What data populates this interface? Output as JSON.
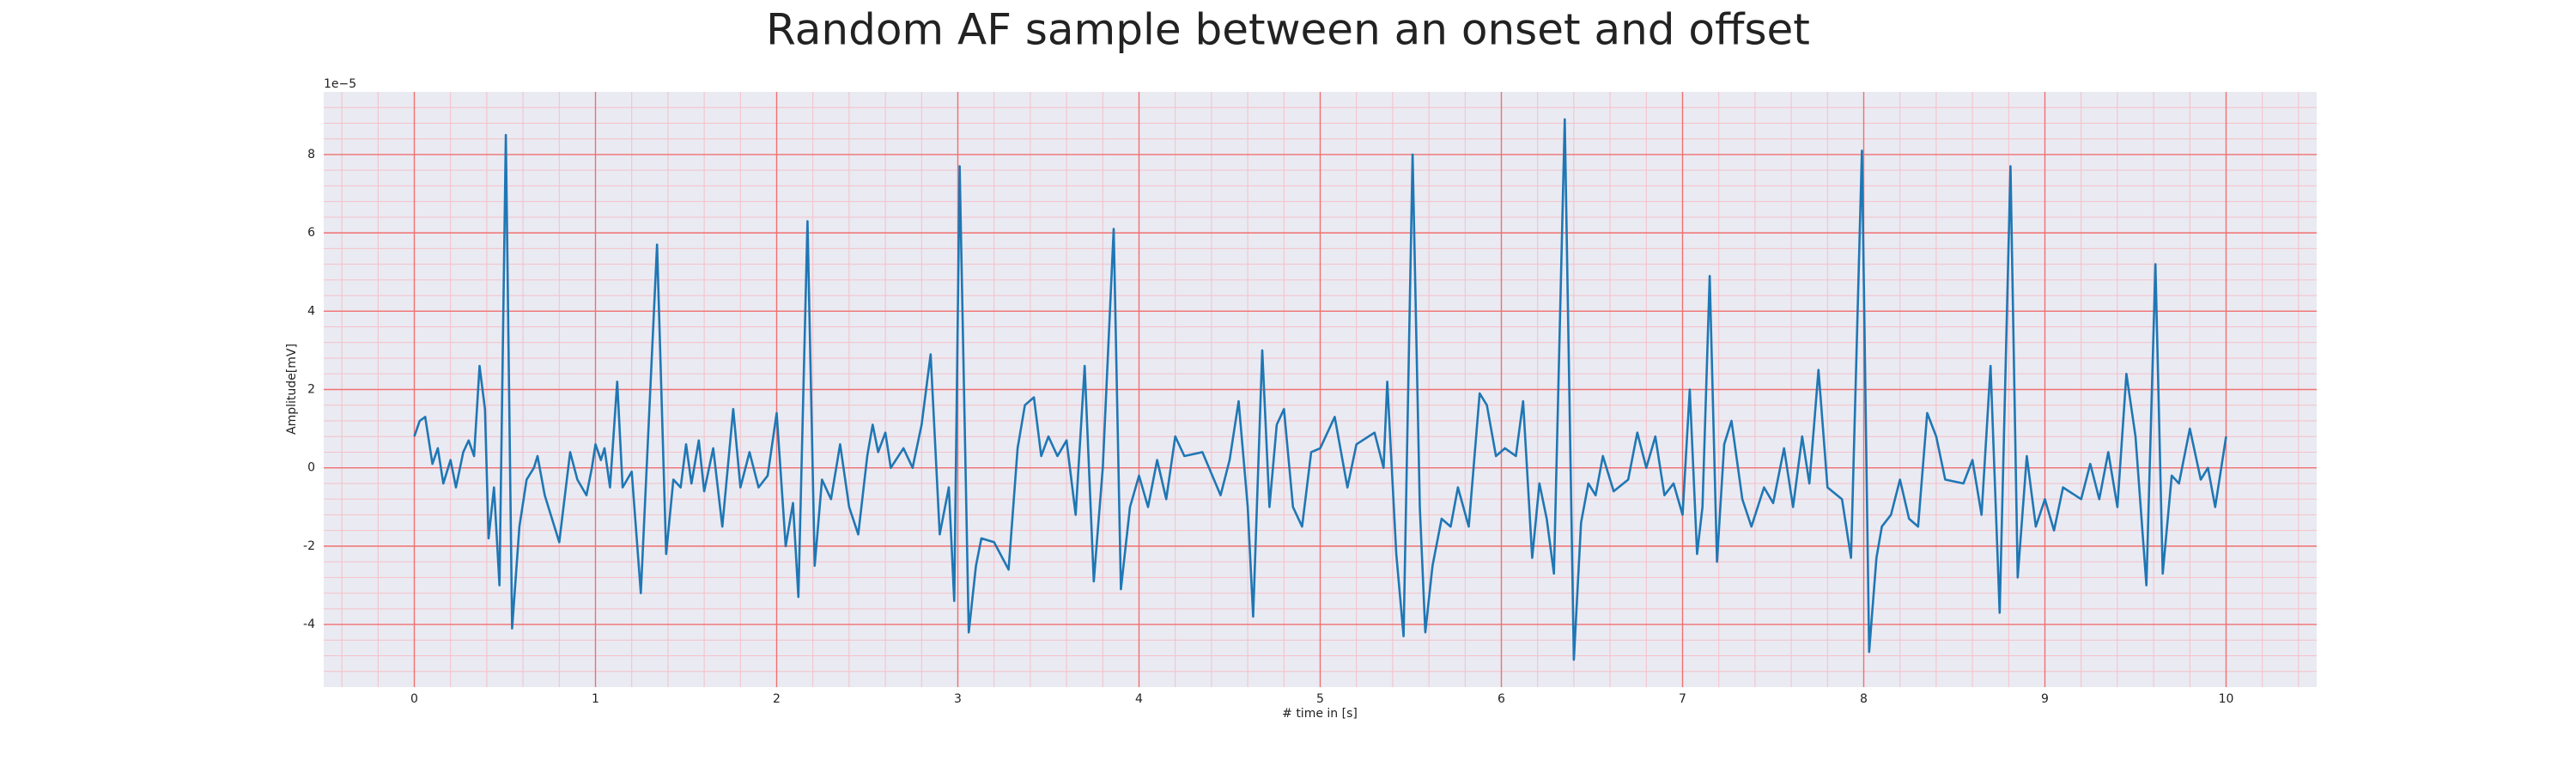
{
  "chart_data": {
    "type": "line",
    "title": "Random AF sample between an onset and offset",
    "x_label": "# time in [s]",
    "y_label": "Amplitude[mV]",
    "y_offset_label": "1e−5",
    "xlim": [
      -0.5,
      10.5
    ],
    "ylim": [
      -5.6,
      9.6
    ],
    "xticks": [
      0,
      1,
      2,
      3,
      4,
      5,
      6,
      7,
      8,
      9,
      10
    ],
    "yticks": [
      -4,
      -2,
      0,
      2,
      4,
      6,
      8
    ],
    "grid": true,
    "minor_grid": true,
    "background": "#eaeaf2",
    "grid_color": "#f07070",
    "minor_grid_color": "#f5c0c8",
    "series": [
      {
        "color": "#1f77b4",
        "x": [
          0,
          0.03,
          0.06,
          0.1,
          0.13,
          0.16,
          0.2,
          0.23,
          0.27,
          0.3,
          0.33,
          0.36,
          0.39,
          0.41,
          0.44,
          0.47,
          0.505,
          0.54,
          0.58,
          0.62,
          0.66,
          0.68,
          0.72,
          0.8,
          0.86,
          0.9,
          0.95,
          0.98,
          1.0,
          1.03,
          1.05,
          1.08,
          1.12,
          1.15,
          1.2,
          1.25,
          1.34,
          1.39,
          1.43,
          1.47,
          1.5,
          1.53,
          1.57,
          1.6,
          1.65,
          1.7,
          1.76,
          1.8,
          1.85,
          1.9,
          1.95,
          2.0,
          2.05,
          2.09,
          2.12,
          2.17,
          2.21,
          2.25,
          2.3,
          2.35,
          2.4,
          2.45,
          2.5,
          2.53,
          2.56,
          2.6,
          2.63,
          2.7,
          2.75,
          2.8,
          2.85,
          2.9,
          2.95,
          2.98,
          3.01,
          3.06,
          3.1,
          3.13,
          3.2,
          3.28,
          3.33,
          3.37,
          3.42,
          3.46,
          3.5,
          3.55,
          3.6,
          3.65,
          3.7,
          3.75,
          3.8,
          3.86,
          3.9,
          3.95,
          4.0,
          4.05,
          4.1,
          4.15,
          4.2,
          4.25,
          4.35,
          4.45,
          4.5,
          4.55,
          4.6,
          4.63,
          4.68,
          4.72,
          4.76,
          4.8,
          4.85,
          4.9,
          4.95,
          5.0,
          5.08,
          5.15,
          5.2,
          5.3,
          5.35,
          5.37,
          5.42,
          5.46,
          5.51,
          5.55,
          5.58,
          5.62,
          5.67,
          5.72,
          5.76,
          5.82,
          5.88,
          5.92,
          5.97,
          6.02,
          6.08,
          6.12,
          6.17,
          6.21,
          6.25,
          6.29,
          6.35,
          6.4,
          6.44,
          6.48,
          6.52,
          6.56,
          6.62,
          6.7,
          6.75,
          6.8,
          6.85,
          6.9,
          6.95,
          7.0,
          7.04,
          7.08,
          7.11,
          7.15,
          7.19,
          7.23,
          7.27,
          7.33,
          7.38,
          7.45,
          7.5,
          7.56,
          7.61,
          7.66,
          7.7,
          7.75,
          7.8,
          7.88,
          7.93,
          7.99,
          8.03,
          8.07,
          8.1,
          8.15,
          8.2,
          8.25,
          8.3,
          8.35,
          8.4,
          8.45,
          8.55,
          8.6,
          8.65,
          8.7,
          8.75,
          8.81,
          8.85,
          8.9,
          8.95,
          9.0,
          9.05,
          9.1,
          9.2,
          9.25,
          9.3,
          9.35,
          9.4,
          9.45,
          9.5,
          9.56,
          9.61,
          9.65,
          9.7,
          9.74,
          9.8,
          9.86,
          9.9,
          9.94,
          10.0
        ],
        "values": [
          0.8,
          1.2,
          1.3,
          0.1,
          0.5,
          -0.4,
          0.2,
          -0.5,
          0.4,
          0.7,
          0.3,
          2.6,
          1.5,
          -1.8,
          -0.5,
          -3.0,
          8.5,
          -4.1,
          -1.5,
          -0.3,
          0.0,
          0.3,
          -0.7,
          -1.9,
          0.4,
          -0.3,
          -0.7,
          0.0,
          0.6,
          0.2,
          0.5,
          -0.5,
          2.2,
          -0.5,
          -0.1,
          -3.2,
          5.7,
          -2.2,
          -0.3,
          -0.5,
          0.6,
          -0.4,
          0.7,
          -0.6,
          0.5,
          -1.5,
          1.5,
          -0.5,
          0.4,
          -0.5,
          -0.2,
          1.4,
          -2.0,
          -0.9,
          -3.3,
          6.3,
          -2.5,
          -0.3,
          -0.8,
          0.6,
          -1.0,
          -1.7,
          0.3,
          1.1,
          0.4,
          0.9,
          0.0,
          0.5,
          0.0,
          1.1,
          2.9,
          -1.7,
          -0.5,
          -3.4,
          7.7,
          -4.2,
          -2.5,
          -1.8,
          -1.9,
          -2.6,
          0.5,
          1.6,
          1.8,
          0.3,
          0.8,
          0.3,
          0.7,
          -1.2,
          2.6,
          -2.9,
          0.0,
          6.1,
          -3.1,
          -1.0,
          -0.2,
          -1.0,
          0.2,
          -0.8,
          0.8,
          0.3,
          0.4,
          -0.7,
          0.2,
          1.7,
          -1.0,
          -3.8,
          3.0,
          -1.0,
          1.1,
          1.5,
          -1.0,
          -1.5,
          0.4,
          0.5,
          1.3,
          -0.5,
          0.6,
          0.9,
          0.0,
          2.2,
          -2.2,
          -4.3,
          8.0,
          -1.0,
          -4.2,
          -2.5,
          -1.3,
          -1.5,
          -0.5,
          -1.5,
          1.9,
          1.6,
          0.3,
          0.5,
          0.3,
          1.7,
          -2.3,
          -0.4,
          -1.3,
          -2.7,
          8.9,
          -4.9,
          -1.4,
          -0.4,
          -0.7,
          0.3,
          -0.6,
          -0.3,
          0.9,
          0.0,
          0.8,
          -0.7,
          -0.4,
          -1.2,
          2.0,
          -2.2,
          -1.0,
          4.9,
          -2.4,
          0.6,
          1.2,
          -0.8,
          -1.5,
          -0.5,
          -0.9,
          0.5,
          -1.0,
          0.8,
          -0.4,
          2.5,
          -0.5,
          -0.8,
          -2.3,
          8.1,
          -4.7,
          -2.3,
          -1.5,
          -1.2,
          -0.3,
          -1.3,
          -1.5,
          1.4,
          0.8,
          -0.3,
          -0.4,
          0.2,
          -1.2,
          2.6,
          -3.7,
          7.7,
          -2.8,
          0.3,
          -1.5,
          -0.8,
          -1.6,
          -0.5,
          -0.8,
          0.1,
          -0.8,
          0.4,
          -1.0,
          2.4,
          0.8,
          -3.0,
          5.2,
          -2.7,
          -0.2,
          -0.4,
          1.0,
          -0.3,
          0.0,
          -1.0,
          0.8
        ]
      }
    ]
  }
}
